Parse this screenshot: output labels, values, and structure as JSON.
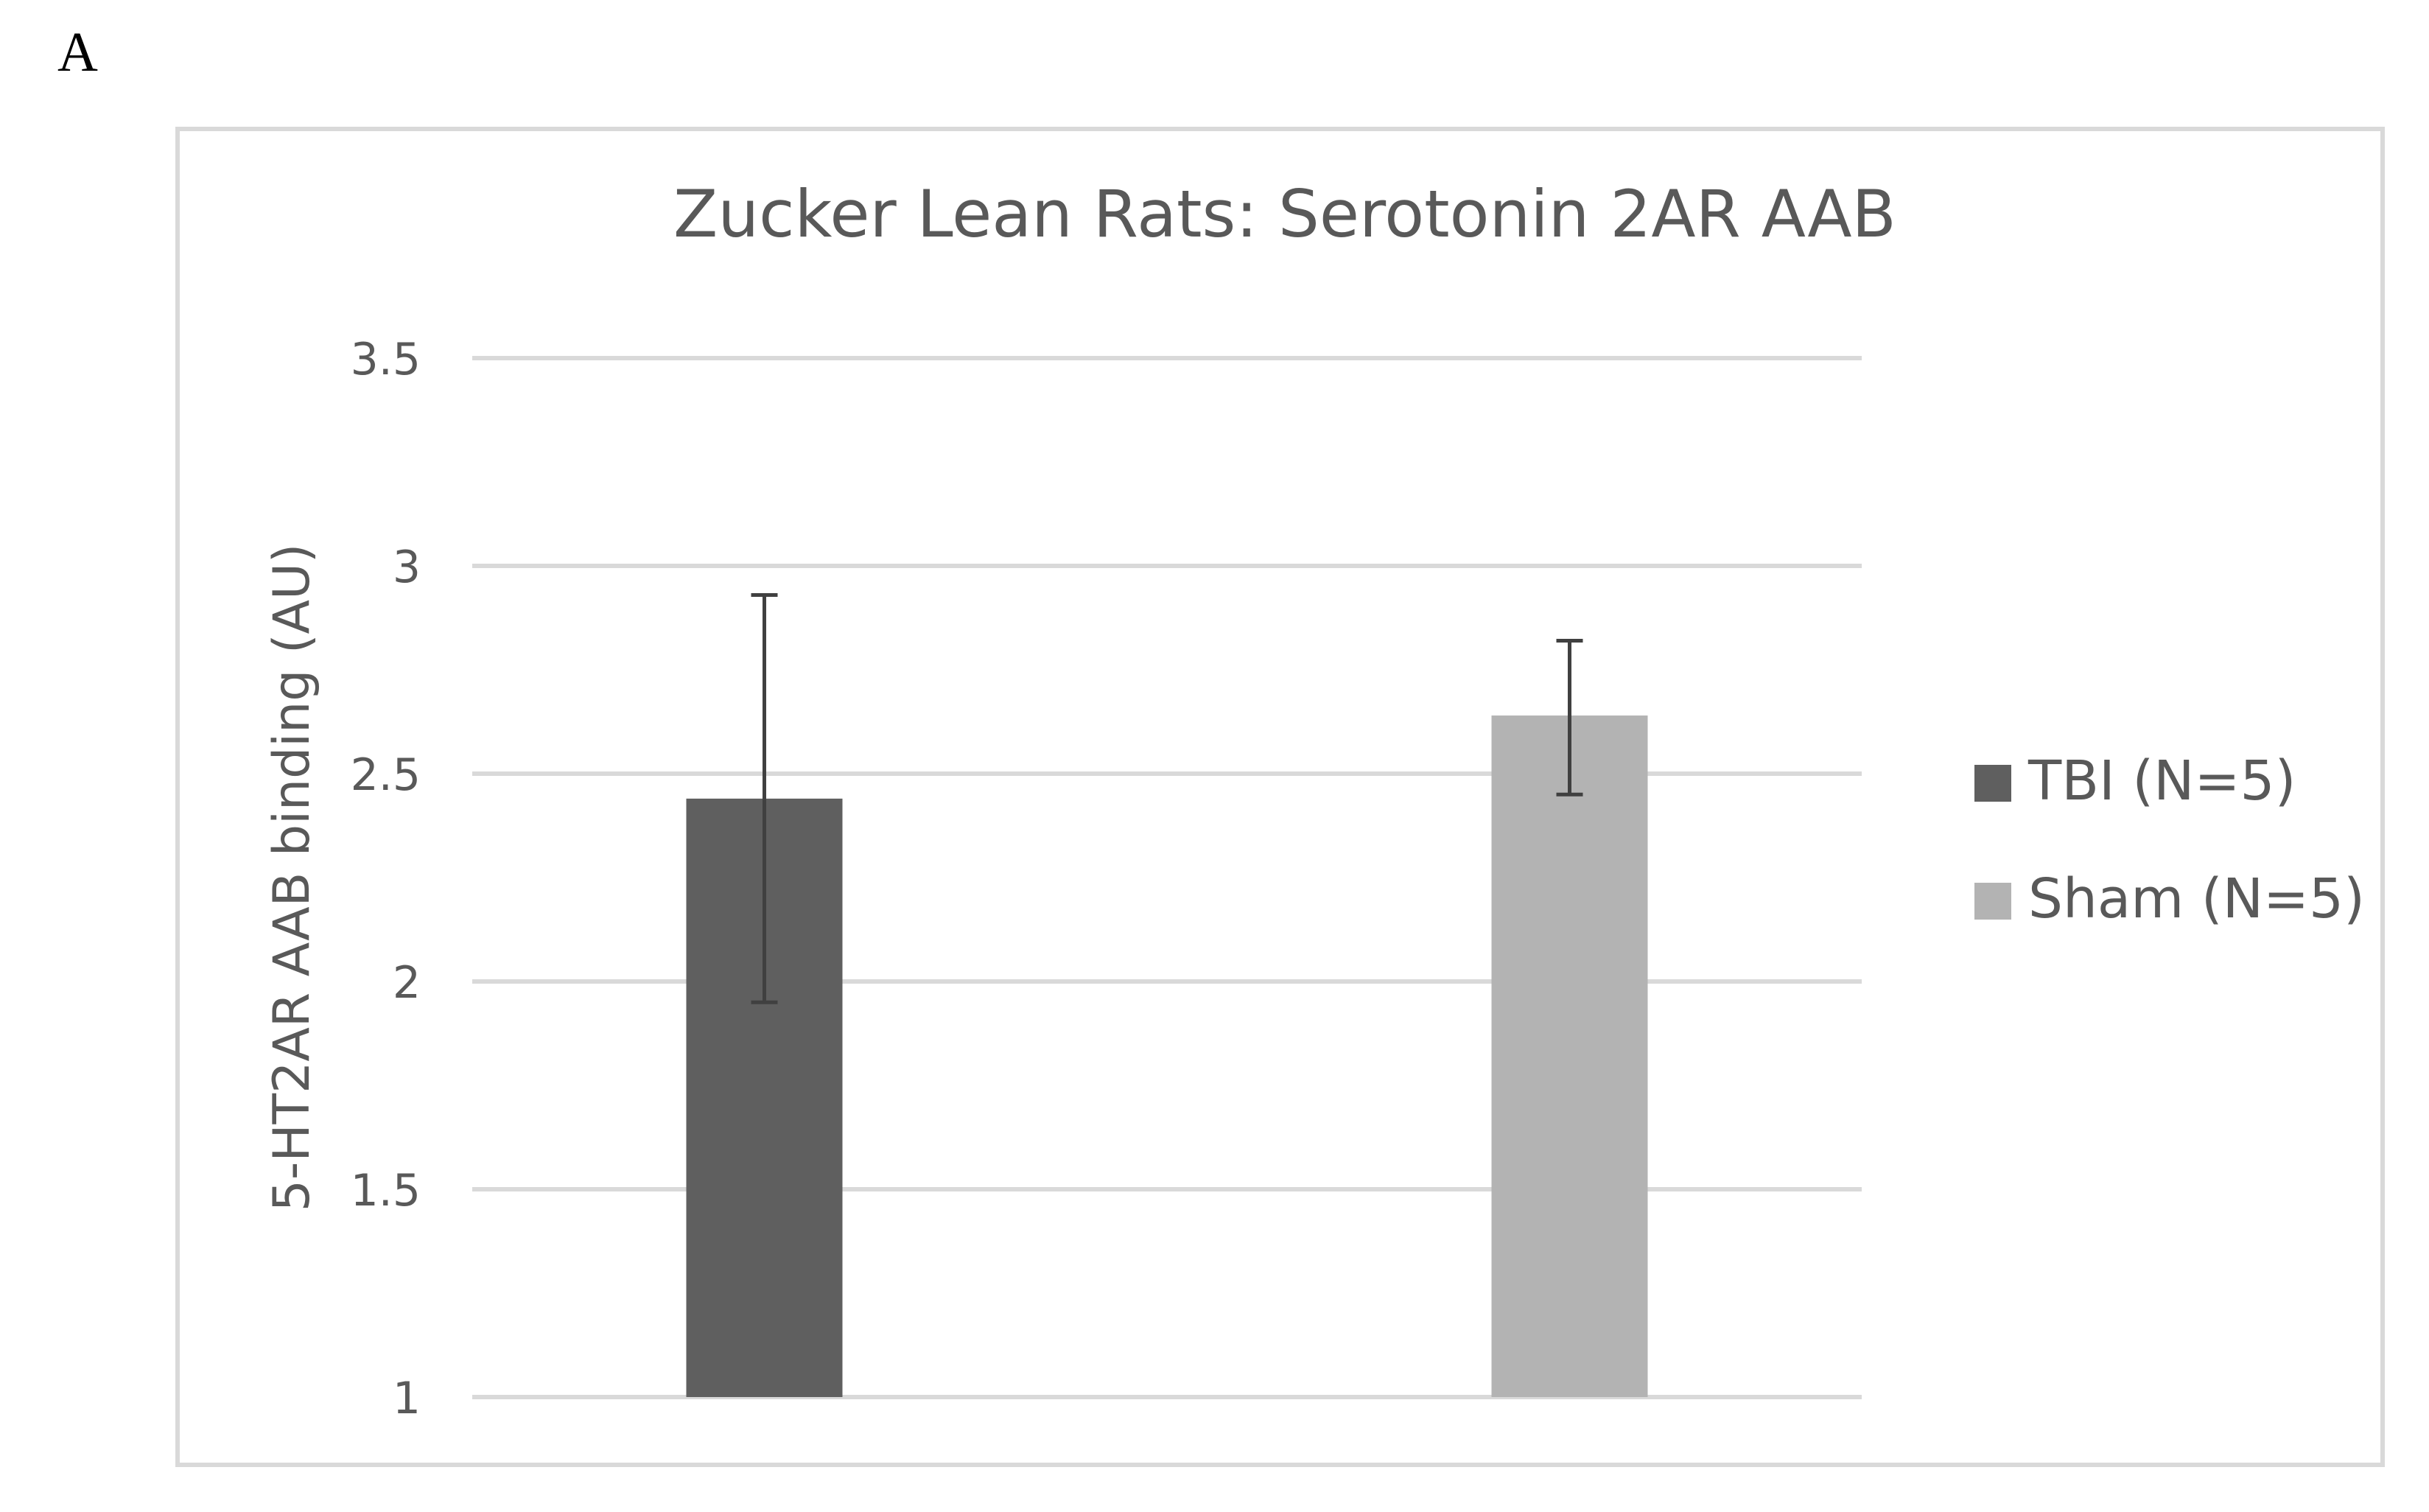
{
  "panel_label": "A",
  "colors": {
    "tbi": "#5f5f5f",
    "sham": "#b3b3b3",
    "grid": "#d9d9d9",
    "text": "#595959",
    "error_bar": "#404040"
  },
  "chart_data": {
    "type": "bar",
    "title": "Zucker Lean Rats: Serotonin 2AR AAB",
    "xlabel": "",
    "ylabel": "5-HT2AR AAB binding (AU)",
    "ylim": [
      1,
      3.5
    ],
    "yticks": [
      1,
      1.5,
      2,
      2.5,
      3,
      3.5
    ],
    "ytick_labels": [
      "1",
      "1.5",
      "2",
      "2.5",
      "3",
      "3.5"
    ],
    "grid": true,
    "legend_position": "right",
    "series": [
      {
        "name": "TBI (N=5)",
        "value": 2.44,
        "error_low": 1.95,
        "error_high": 2.93,
        "color": "#5f5f5f"
      },
      {
        "name": "Sham (N=5)",
        "value": 2.64,
        "error_low": 2.45,
        "error_high": 2.82,
        "color": "#b3b3b3"
      }
    ]
  }
}
